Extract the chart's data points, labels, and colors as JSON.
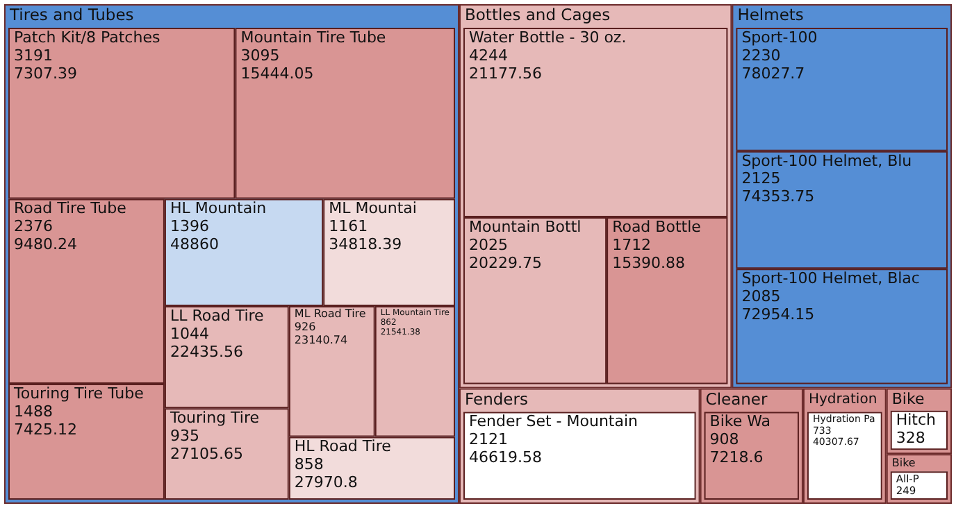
{
  "chart_data": {
    "type": "other",
    "data_labels": true,
    "categories": [
      "Patch Kit/8 Patches",
      "Mountain Tire Tube",
      "Road Tire Tube",
      "Touring Tire Tube",
      "HL Mountain",
      "ML Mountai",
      "LL Road Tire",
      "Touring Tire",
      "ML Road Tire",
      "LL Mountain Tire",
      "HL Road Tire",
      "Water Bottle - 30 oz.",
      "Mountain Bottl",
      "Road Bottle",
      "Sport-100",
      "Sport-100 Helmet, Blu",
      "Sport-100 Helmet, Blac",
      "Fender Set - Mountain",
      "Bike Wa",
      "Hydration Pa",
      "Hitch",
      "All-P"
    ],
    "series": [
      {
        "name": "Tires and Tubes",
        "color": "#558ed5",
        "values": [
          3191,
          3095,
          2376,
          1488,
          1396,
          1161,
          1044,
          935,
          926,
          862,
          858,
          null,
          null,
          null,
          null,
          null,
          null,
          null,
          null,
          null,
          null,
          null
        ],
        "colors": [
          "#d99594",
          "#d99594",
          "#d99594",
          "#d99594",
          "#c6d9f1",
          "#f2dcdb",
          "#e6b9b8",
          "#e6b9b8",
          "#e6b9b8",
          "#e6b9b8",
          "#f2dcdb",
          null,
          null,
          null,
          null,
          null,
          null,
          null,
          null,
          null,
          null,
          null
        ]
      },
      {
        "name": "Bottles and Cages",
        "color": "#e6b9b8",
        "values": [
          null,
          null,
          null,
          null,
          null,
          null,
          null,
          null,
          null,
          null,
          null,
          4244,
          2025,
          1712,
          null,
          null,
          null,
          null,
          null,
          null,
          null,
          null
        ],
        "colors": [
          null,
          null,
          null,
          null,
          null,
          null,
          null,
          null,
          null,
          null,
          null,
          "#e6b9b8",
          "#e6b9b8",
          "#d99594",
          null,
          null,
          null,
          null,
          null,
          null,
          null,
          null
        ]
      },
      {
        "name": "Helmets",
        "color": "#558ed5",
        "values": [
          null,
          null,
          null,
          null,
          null,
          null,
          null,
          null,
          null,
          null,
          null,
          null,
          null,
          null,
          2230,
          2125,
          2085,
          null,
          null,
          null,
          null,
          null
        ],
        "colors": [
          null,
          null,
          null,
          null,
          null,
          null,
          null,
          null,
          null,
          null,
          null,
          null,
          null,
          null,
          "#558ed5",
          "#558ed5",
          "#558ed5",
          null,
          null,
          null,
          null,
          null
        ]
      },
      {
        "name": "Fenders",
        "color": "#e6b9b8",
        "values": [
          null,
          null,
          null,
          null,
          null,
          null,
          null,
          null,
          null,
          null,
          null,
          null,
          null,
          null,
          null,
          null,
          null,
          2121,
          null,
          null,
          null,
          null
        ],
        "colors": [
          null,
          null,
          null,
          null,
          null,
          null,
          null,
          null,
          null,
          null,
          null,
          null,
          null,
          null,
          null,
          null,
          null,
          "#ffffff",
          null,
          null,
          null,
          null
        ]
      },
      {
        "name": "Cleaner",
        "color": "#d99594",
        "values": [
          null,
          null,
          null,
          null,
          null,
          null,
          null,
          null,
          null,
          null,
          null,
          null,
          null,
          null,
          null,
          null,
          null,
          null,
          908,
          null,
          null,
          null
        ],
        "colors": [
          null,
          null,
          null,
          null,
          null,
          null,
          null,
          null,
          null,
          null,
          null,
          null,
          null,
          null,
          null,
          null,
          null,
          null,
          "#d99594",
          null,
          null,
          null
        ]
      },
      {
        "name": "Hydration",
        "color": "#d99594",
        "values": [
          null,
          null,
          null,
          null,
          null,
          null,
          null,
          null,
          null,
          null,
          null,
          null,
          null,
          null,
          null,
          null,
          null,
          null,
          null,
          733,
          null,
          null
        ],
        "colors": [
          null,
          null,
          null,
          null,
          null,
          null,
          null,
          null,
          null,
          null,
          null,
          null,
          null,
          null,
          null,
          null,
          null,
          null,
          null,
          "#ffffff",
          null,
          null
        ]
      },
      {
        "name": "Bike",
        "color": "#d99594",
        "values": [
          null,
          null,
          null,
          null,
          null,
          null,
          null,
          null,
          null,
          null,
          null,
          null,
          null,
          null,
          null,
          null,
          null,
          null,
          null,
          null,
          328,
          null
        ],
        "colors": [
          null,
          null,
          null,
          null,
          null,
          null,
          null,
          null,
          null,
          null,
          null,
          null,
          null,
          null,
          null,
          null,
          null,
          null,
          null,
          null,
          "#ffffff",
          null
        ]
      },
      {
        "name": "Bike",
        "color": "#d99594",
        "values": [
          null,
          null,
          null,
          null,
          null,
          null,
          null,
          null,
          null,
          null,
          null,
          null,
          null,
          null,
          null,
          null,
          null,
          null,
          null,
          null,
          null,
          249
        ],
        "colors": [
          null,
          null,
          null,
          null,
          null,
          null,
          null,
          null,
          null,
          null,
          null,
          null,
          null,
          null,
          null,
          null,
          null,
          null,
          null,
          null,
          null,
          "#ffffff"
        ]
      }
    ],
    "annotations": [
      {
        "text": "7307.39",
        "x": "Patch Kit/8 Patches"
      },
      {
        "text": "15444.05",
        "x": "Mountain Tire Tube"
      },
      {
        "text": "9480.24",
        "x": "Road Tire Tube"
      },
      {
        "text": "7425.12",
        "x": "Touring Tire Tube"
      },
      {
        "text": "48860",
        "x": "HL Mountain"
      },
      {
        "text": "34818.39",
        "x": "ML Mountai"
      },
      {
        "text": "22435.56",
        "x": "LL Road Tire"
      },
      {
        "text": "27105.65",
        "x": "Touring Tire"
      },
      {
        "text": "23140.74",
        "x": "ML Road Tire"
      },
      {
        "text": "21541.38",
        "x": "LL Mountain Tire"
      },
      {
        "text": "27970.8",
        "x": "HL Road Tire"
      },
      {
        "text": "21177.56",
        "x": "Water Bottle - 30 oz."
      },
      {
        "text": "20229.75",
        "x": "Mountain Bottl"
      },
      {
        "text": "15390.88",
        "x": "Road Bottle"
      },
      {
        "text": "78027.7",
        "x": "Sport-100"
      },
      {
        "text": "74353.75",
        "x": "Sport-100 Helmet, Blu"
      },
      {
        "text": "72954.15",
        "x": "Sport-100 Helmet, Blac"
      },
      {
        "text": "46619.58",
        "x": "Fender Set - Mountain"
      },
      {
        "text": "7218.6",
        "x": "Bike Wa"
      },
      {
        "text": "40307.67",
        "x": "Hydration Pa"
      }
    ]
  }
}
